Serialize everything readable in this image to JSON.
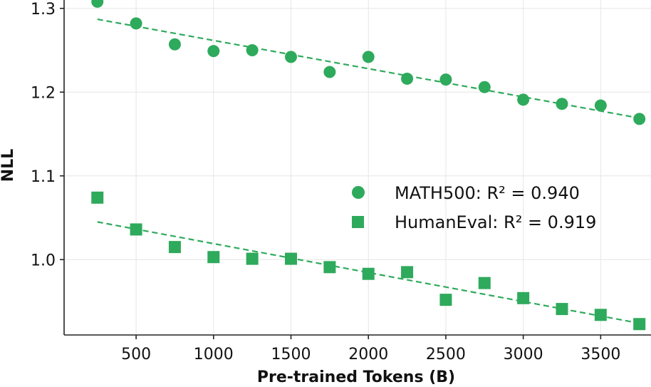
{
  "chart_data": {
    "type": "scatter",
    "title": "",
    "xlabel": "Pre-trained Tokens (B)",
    "ylabel": "NLL",
    "xlim": [
      35,
      3825
    ],
    "ylim": [
      0.91,
      1.31
    ],
    "xticks": [
      500,
      1000,
      1500,
      2000,
      2500,
      3000,
      3500
    ],
    "xtick_labels": [
      "500",
      "1000",
      "1500",
      "2000",
      "2500",
      "3000",
      "3500"
    ],
    "yticks": [
      1.0,
      1.1,
      1.2,
      1.3
    ],
    "ytick_labels": [
      "1.0",
      "1.1",
      "1.2",
      "1.3"
    ],
    "grid": true,
    "legend_position": "center-right",
    "color": "#2eaa5c",
    "series": [
      {
        "name": "MATH500: R² = 0.940",
        "marker": "circle",
        "x": [
          250,
          500,
          750,
          1000,
          1250,
          1500,
          1750,
          2000,
          2250,
          2500,
          2750,
          3000,
          3250,
          3500,
          3750
        ],
        "values": [
          1.308,
          1.282,
          1.257,
          1.249,
          1.25,
          1.242,
          1.224,
          1.242,
          1.216,
          1.215,
          1.206,
          1.191,
          1.186,
          1.184,
          1.168
        ],
        "fit": {
          "x": [
            250,
            3750
          ],
          "y": [
            1.287,
            1.169
          ]
        }
      },
      {
        "name": "HumanEval: R² = 0.919",
        "marker": "square",
        "x": [
          250,
          500,
          750,
          1000,
          1250,
          1500,
          1750,
          2000,
          2250,
          2500,
          2750,
          3000,
          3250,
          3500,
          3750
        ],
        "values": [
          1.074,
          1.036,
          1.015,
          1.003,
          1.001,
          1.001,
          0.991,
          0.983,
          0.985,
          0.952,
          0.972,
          0.954,
          0.941,
          0.934,
          0.923
        ],
        "fit": {
          "x": [
            250,
            3750
          ],
          "y": [
            1.045,
            0.924
          ]
        }
      }
    ]
  }
}
